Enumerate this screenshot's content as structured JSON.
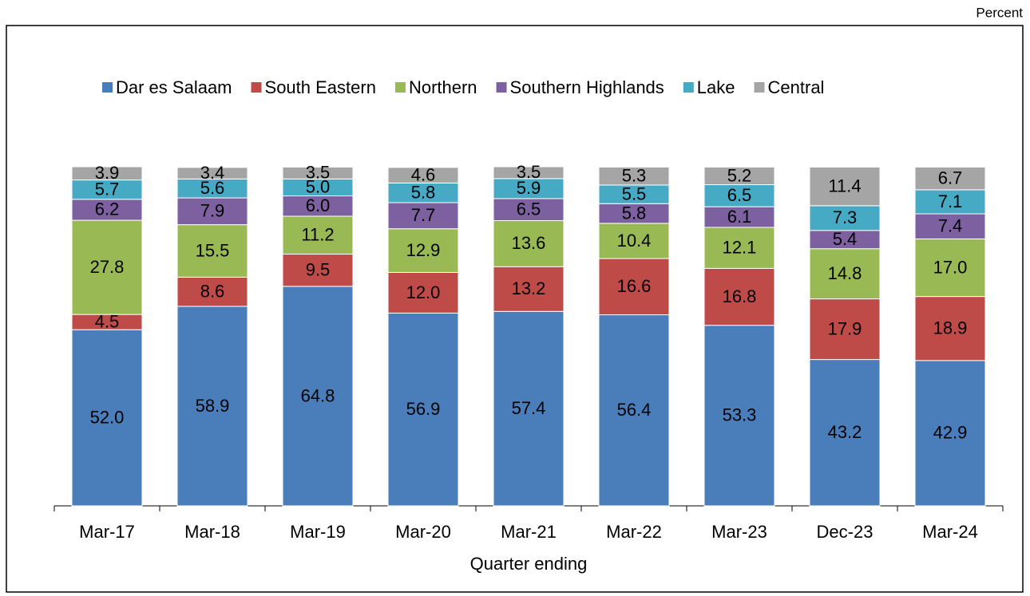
{
  "chart_data": {
    "type": "stacked-bar",
    "unit_label": "Percent",
    "x_axis_label": "Quarter ending",
    "categories": [
      "Mar-17",
      "Mar-18",
      "Mar-19",
      "Mar-20",
      "Mar-21",
      "Mar-22",
      "Mar-23",
      "Dec-23",
      "Mar-24"
    ],
    "series": [
      {
        "name": "Dar es Salaam",
        "color": "#4a7ebb",
        "values": [
          52.0,
          58.9,
          64.8,
          56.9,
          57.4,
          56.4,
          53.3,
          43.2,
          42.9
        ],
        "value_labels": [
          "52.0",
          "58.9",
          "64.8",
          "56.9",
          "57.4",
          "56.4",
          "53.3",
          "43.2",
          "42.9"
        ]
      },
      {
        "name": "South Eastern",
        "color": "#be4b48",
        "values": [
          4.5,
          8.6,
          9.5,
          12.0,
          13.2,
          16.6,
          16.8,
          17.9,
          18.9
        ],
        "value_labels": [
          "4.5",
          "8.6",
          "9.5",
          "12.0",
          "13.2",
          "16.6",
          "16.8",
          "17.9",
          "18.9"
        ]
      },
      {
        "name": "Northern",
        "color": "#98b954",
        "values": [
          27.8,
          15.5,
          11.2,
          12.9,
          13.6,
          10.4,
          12.1,
          14.8,
          17.0
        ],
        "value_labels": [
          "27.8",
          "15.5",
          "11.2",
          "12.9",
          "13.6",
          "10.4",
          "12.1",
          "14.8",
          "17.0"
        ]
      },
      {
        "name": "Southern Highlands",
        "color": "#7d60a0",
        "values": [
          6.2,
          7.9,
          6.0,
          7.7,
          6.5,
          5.8,
          6.1,
          5.4,
          7.4
        ],
        "value_labels": [
          "6.2",
          "7.9",
          "6.0",
          "7.7",
          "6.5",
          "5.8",
          "6.1",
          "5.4",
          "7.4"
        ]
      },
      {
        "name": "Lake",
        "color": "#46aac5",
        "values": [
          5.7,
          5.6,
          5.0,
          5.8,
          5.9,
          5.5,
          6.5,
          7.3,
          7.1
        ],
        "value_labels": [
          "5.7",
          "5.6",
          "5.0",
          "5.8",
          "5.9",
          "5.5",
          "6.5",
          "7.3",
          "7.1"
        ]
      },
      {
        "name": "Central",
        "color": "#a5a5a5",
        "values": [
          3.9,
          3.4,
          3.5,
          4.6,
          3.5,
          5.3,
          5.2,
          11.4,
          6.7
        ],
        "value_labels": [
          "3.9",
          "3.4",
          "3.5",
          "4.6",
          "3.5",
          "5.3",
          "5.2",
          "11.4",
          "6.7"
        ]
      }
    ]
  }
}
